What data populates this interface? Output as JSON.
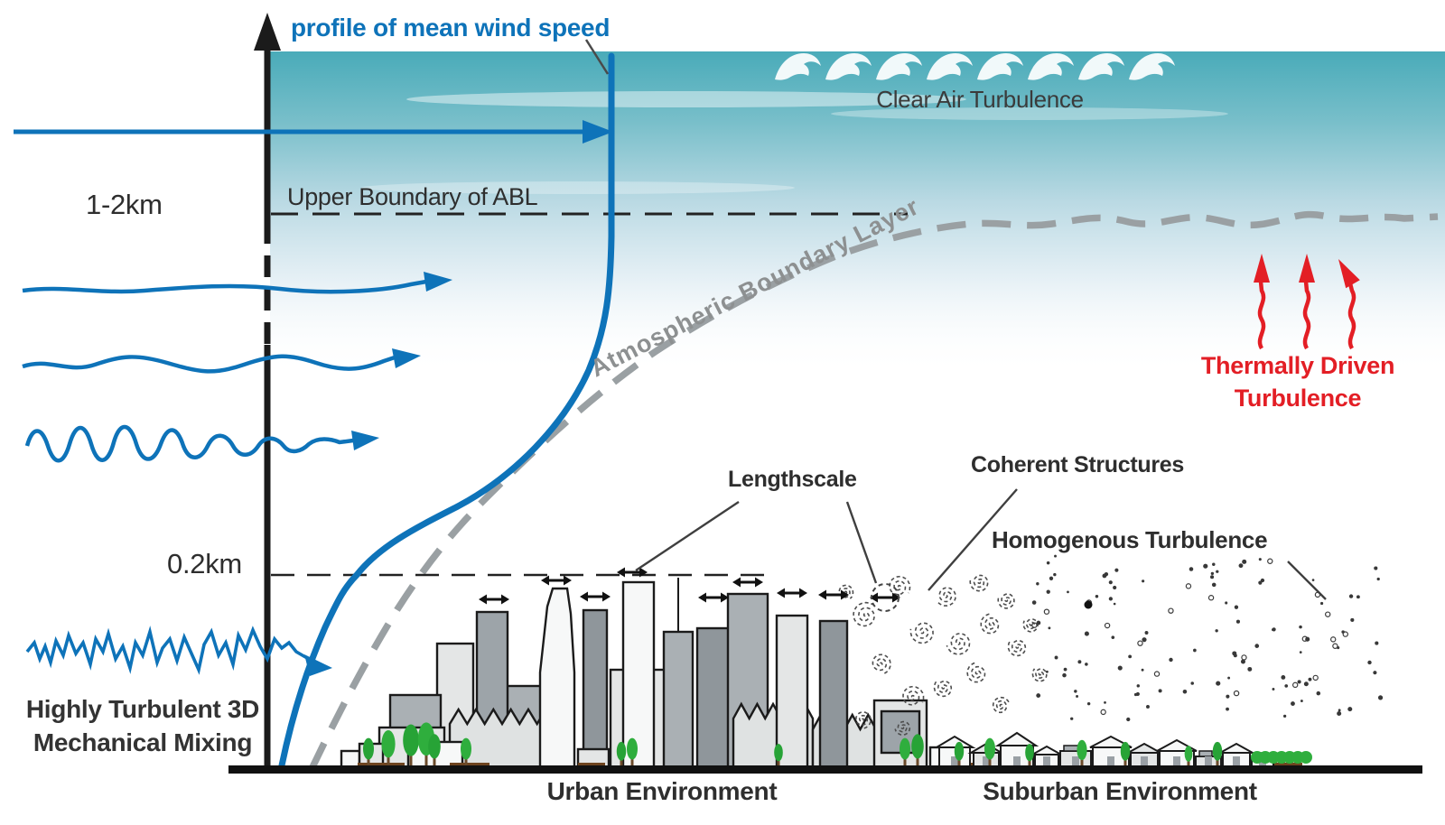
{
  "colors": {
    "wind_blue": "#0e73b9",
    "sky_teal_top": "#49abb9",
    "boundary_gray": "#9aa0a3",
    "thermal_red": "#e31e25",
    "ink": "#1b1b1b",
    "label_gray": "#8d9091",
    "tree_green": "#2fae3d",
    "building_light": "#e4e6e6",
    "building_mid": "#aab0b4",
    "building_dark": "#8f969b"
  },
  "labels": {
    "wind_profile": "profile of mean wind speed",
    "clear_air_turbulence": "Clear Air Turbulence",
    "upper_boundary_abl": "Upper Boundary of ABL",
    "height_tick_upper": "1-2km",
    "height_tick_lower": "0.2km",
    "atmospheric_boundary_layer": "Atmospheric Boundary Layer",
    "thermally_driven": {
      "line1": "Thermally Driven",
      "line2": "Turbulence"
    },
    "lengthscale": "Lengthscale",
    "coherent_structures": "Coherent Structures",
    "homogenous_turbulence": "Homogenous Turbulence",
    "mechanical_mixing": {
      "line1": "Highly Turbulent 3D",
      "line2": "Mechanical Mixing"
    },
    "urban_environment": "Urban Environment",
    "suburban_environment": "Suburban Environment"
  }
}
